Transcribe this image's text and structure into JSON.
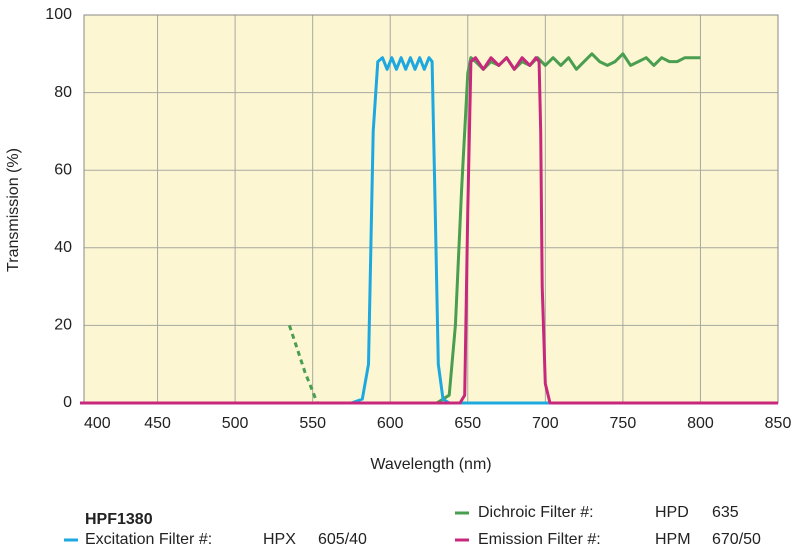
{
  "chart_data": {
    "type": "line",
    "xlabel": "Wavelength (nm)",
    "ylabel": "Transmission (%)",
    "xlim": [
      400,
      850
    ],
    "xticks": [
      400,
      450,
      500,
      550,
      600,
      650,
      700,
      750,
      800,
      850
    ],
    "ylim": [
      0,
      100
    ],
    "yticks": [
      0,
      20,
      40,
      60,
      80,
      100
    ],
    "grid": true,
    "legend_title": "HPF1380",
    "series": [
      {
        "name": "Dichroic Filter #:",
        "code": "HPD",
        "spec": "635",
        "color": "#4a9e4f",
        "segments": [
          {
            "style": "dashed",
            "x": [
              535,
              540,
              545,
              550,
              553
            ],
            "values": [
              20,
              14,
              8,
              3,
              0
            ]
          },
          {
            "style": "solid",
            "x": [
              553,
              600,
              630,
              638,
              642,
              646,
              650,
              652,
              655,
              660,
              665,
              670,
              675,
              680,
              685,
              690,
              695,
              700,
              705,
              710,
              715,
              720,
              725,
              730,
              735,
              740,
              745,
              750,
              755,
              760,
              765,
              770,
              775,
              780,
              785,
              790,
              800
            ],
            "values": [
              0,
              0,
              0,
              2,
              20,
              55,
              85,
              89,
              88,
              86,
              88,
              87,
              89,
              86,
              88,
              87,
              89,
              87,
              89,
              87,
              89,
              86,
              88,
              90,
              88,
              87,
              88,
              90,
              87,
              88,
              89,
              87,
              89,
              88,
              88,
              89,
              89
            ]
          }
        ]
      },
      {
        "name": "Excitation Filter #:",
        "code": "HPX",
        "spec": "605/40",
        "color": "#1ea8e0",
        "segments": [
          {
            "style": "solid",
            "x": [
              400,
              575,
              582,
              586,
              589,
              592,
              595,
              598,
              601,
              604,
              607,
              610,
              613,
              616,
              619,
              622,
              625,
              627,
              629,
              631,
              634,
              638,
              850
            ],
            "values": [
              0,
              0,
              1,
              10,
              70,
              88,
              89,
              86,
              89,
              86,
              89,
              86,
              89,
              86,
              89,
              86,
              89,
              88,
              50,
              10,
              1,
              0,
              0
            ]
          }
        ]
      },
      {
        "name": "Emission Filter #:",
        "code": "HPM",
        "spec": "670/50",
        "color": "#c8287c",
        "segments": [
          {
            "style": "solid",
            "x": [
              400,
              645,
              648,
              650,
              652,
              655,
              660,
              665,
              670,
              675,
              680,
              685,
              690,
              694,
              696,
              697,
              698,
              700,
              703,
              850
            ],
            "values": [
              0,
              0,
              2,
              50,
              88,
              89,
              86,
              89,
              87,
              89,
              86,
              89,
              87,
              89,
              88,
              70,
              30,
              5,
              0,
              0
            ]
          }
        ]
      }
    ]
  }
}
